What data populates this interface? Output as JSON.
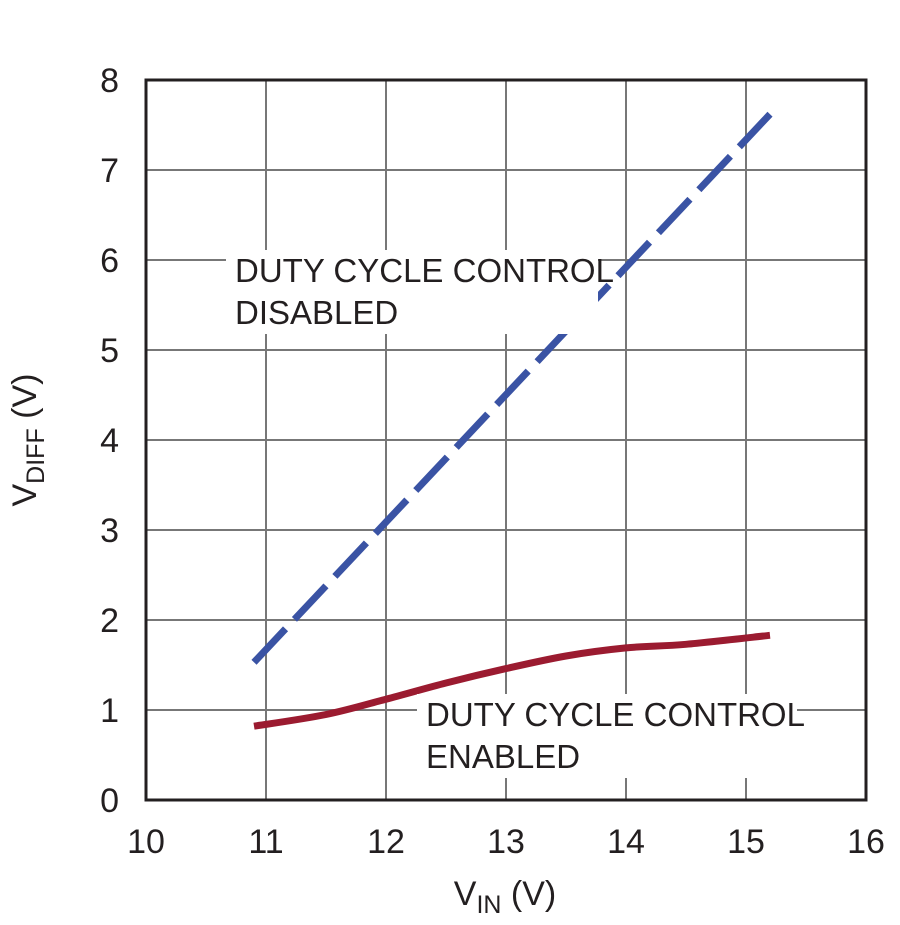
{
  "chart_data": {
    "type": "line",
    "xlabel": {
      "main": "V",
      "sub": "IN",
      "unit": " (V)"
    },
    "ylabel": {
      "main": "V",
      "sub": "DIFF",
      "unit": " (V)"
    },
    "xlim": [
      10,
      16
    ],
    "ylim": [
      0,
      8
    ],
    "x_ticks": [
      "10",
      "11",
      "12",
      "13",
      "14",
      "15",
      "16"
    ],
    "y_ticks": [
      "0",
      "1",
      "2",
      "3",
      "4",
      "5",
      "6",
      "7",
      "8"
    ],
    "grid": true,
    "series": [
      {
        "name": "DUTY CYCLE CONTROL DISABLED",
        "style": "dashed",
        "color": "#3a53a4",
        "points": [
          [
            10.9,
            1.53
          ],
          [
            15.2,
            7.62
          ]
        ]
      },
      {
        "name": "DUTY CYCLE CONTROL ENABLED",
        "style": "solid",
        "color": "#9b1b30",
        "points": [
          [
            10.9,
            0.82
          ],
          [
            11.5,
            0.95
          ],
          [
            12.0,
            1.12
          ],
          [
            12.5,
            1.3
          ],
          [
            13.0,
            1.46
          ],
          [
            13.5,
            1.6
          ],
          [
            14.0,
            1.69
          ],
          [
            14.5,
            1.73
          ],
          [
            15.2,
            1.83
          ]
        ]
      }
    ],
    "annotations": [
      {
        "lines": [
          "DUTY CYCLE CONTROL",
          "DISABLED"
        ]
      },
      {
        "lines": [
          "DUTY CYCLE CONTROL",
          "ENABLED"
        ]
      }
    ]
  }
}
